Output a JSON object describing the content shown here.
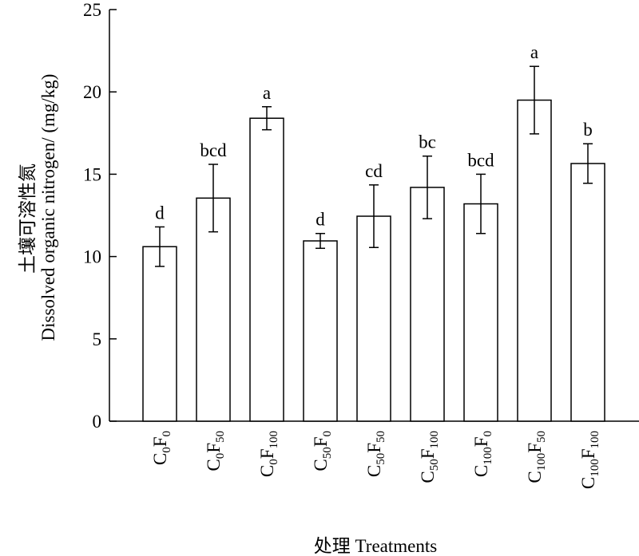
{
  "chart_data": {
    "type": "bar",
    "ylabel_zh": "土壤可溶性氮",
    "ylabel_en": "Dissolved organic nitrogen/ (mg/kg)",
    "xlabel": "处理 Treatments",
    "ylim": [
      0,
      25
    ],
    "yticks": [
      "0",
      "5",
      "10",
      "15",
      "20",
      "25"
    ],
    "ytick_values": [
      0,
      5,
      10,
      15,
      20,
      25
    ],
    "categories": [
      {
        "c": "C",
        "c_sub": "0",
        "f": "F",
        "f_sub": "0"
      },
      {
        "c": "C",
        "c_sub": "0",
        "f": "F",
        "f_sub": "50"
      },
      {
        "c": "C",
        "c_sub": "0",
        "f": "F",
        "f_sub": "100"
      },
      {
        "c": "C",
        "c_sub": "50",
        "f": "F",
        "f_sub": "0"
      },
      {
        "c": "C",
        "c_sub": "50",
        "f": "F",
        "f_sub": "50"
      },
      {
        "c": "C",
        "c_sub": "50",
        "f": "F",
        "f_sub": "100"
      },
      {
        "c": "C",
        "c_sub": "100",
        "f": "F",
        "f_sub": "0"
      },
      {
        "c": "C",
        "c_sub": "100",
        "f": "F",
        "f_sub": "50"
      },
      {
        "c": "C",
        "c_sub": "100",
        "f": "F",
        "f_sub": "100"
      }
    ],
    "values": [
      10.6,
      13.55,
      18.4,
      10.95,
      12.45,
      14.2,
      13.2,
      19.5,
      15.65
    ],
    "errors": [
      1.2,
      2.05,
      0.7,
      0.45,
      1.9,
      1.9,
      1.8,
      2.05,
      1.2
    ],
    "significance": [
      "d",
      "bcd",
      "a",
      "d",
      "cd",
      "bc",
      "bcd",
      "a",
      "b"
    ],
    "grid": false,
    "bar_fill": "#ffffff",
    "bar_stroke": "#000000"
  }
}
